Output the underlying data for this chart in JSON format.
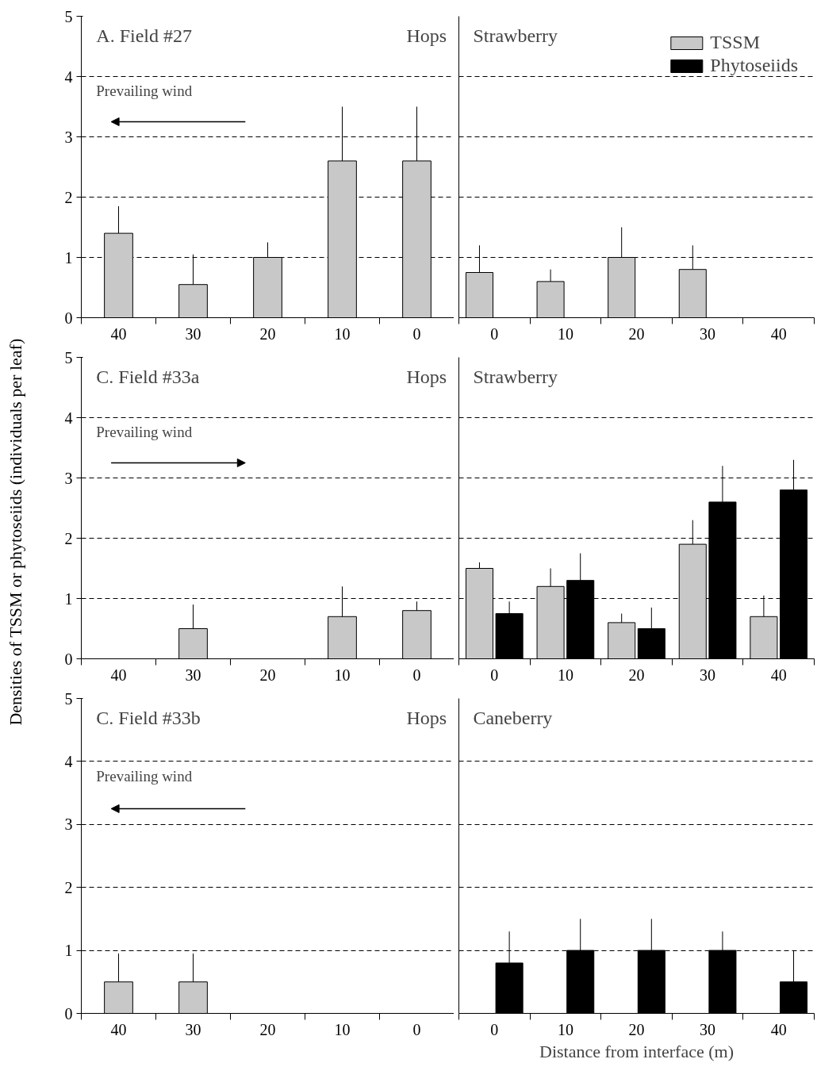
{
  "chart_data": [
    {
      "type": "bar",
      "title": "A. Field #27",
      "categories": [
        "40",
        "30",
        "20",
        "10",
        "0"
      ],
      "ylim": [
        0,
        5
      ],
      "yticks": [
        0,
        1,
        2,
        3,
        4,
        5
      ],
      "grid": "y",
      "annotations": [
        "Hops",
        "Prevailing wind"
      ],
      "series": [
        {
          "color": "#c8c8c8",
          "values": [
            1.4,
            0.55,
            1.0,
            2.6,
            2.6
          ],
          "errors": [
            [
              1.4,
              1.85
            ],
            [
              0.55,
              1.05
            ],
            [
              1.0,
              1.25
            ],
            [
              2.6,
              3.5
            ],
            [
              2.6,
              3.5
            ]
          ]
        }
      ]
    },
    {
      "type": "bar",
      "title": "Strawberry",
      "categories": [
        "0",
        "10",
        "20",
        "30",
        "40"
      ],
      "ylim": [
        0,
        5
      ],
      "yticks": [
        0,
        1,
        2,
        3,
        4,
        5
      ],
      "grid": "y",
      "tick_labels": "x",
      "legend": "top right",
      "series": [
        {
          "name": "TSSM",
          "color": "#c8c8c8",
          "values": [
            0.75,
            0.6,
            1.0,
            0.8,
            null
          ],
          "errors": [
            [
              0.75,
              1.2
            ],
            [
              0.6,
              0.8
            ],
            [
              1.0,
              1.5
            ],
            [
              0.8,
              1.2
            ],
            null
          ]
        },
        {
          "name": "Phytoseiids",
          "color": "#000000",
          "values": [
            null,
            null,
            null,
            null,
            null
          ]
        }
      ]
    },
    {
      "type": "bar",
      "title": "C. Field #33a",
      "categories": [
        "40",
        "30",
        "20",
        "10",
        "0"
      ],
      "ylim": [
        0,
        5
      ],
      "yticks": [
        0,
        1,
        2,
        3,
        4,
        5
      ],
      "grid": "y",
      "ylabel": "Densities of TSSM or phytoseiids (individuals per leaf)",
      "annotations": [
        "Hops",
        "Prevailing wind"
      ],
      "series": [
        {
          "color": "#c8c8c8",
          "values": [
            null,
            0.5,
            null,
            0.7,
            0.8
          ],
          "errors": [
            null,
            [
              0.5,
              0.9
            ],
            null,
            [
              0.7,
              1.2
            ],
            [
              0.8,
              0.95
            ]
          ]
        }
      ]
    },
    {
      "type": "bar",
      "title": "Strawberry",
      "categories": [
        "0",
        "10",
        "20",
        "30",
        "40"
      ],
      "ylim": [
        0,
        5
      ],
      "yticks": [
        0,
        1,
        2,
        3,
        4,
        5
      ],
      "grid": "y",
      "tick_labels": "x",
      "series": [
        {
          "color": "#c8c8c8",
          "values": [
            1.5,
            1.2,
            0.6,
            1.9,
            0.7
          ],
          "errors": [
            [
              1.5,
              1.6
            ],
            [
              1.2,
              1.5
            ],
            [
              0.6,
              0.75
            ],
            [
              1.9,
              2.3
            ],
            [
              0.7,
              1.05
            ]
          ]
        },
        {
          "color": "#000000",
          "values": [
            0.75,
            1.3,
            0.5,
            2.6,
            2.8
          ],
          "errors": [
            [
              0.75,
              0.95
            ],
            [
              1.3,
              1.75
            ],
            [
              0.5,
              0.85
            ],
            [
              2.6,
              3.2
            ],
            [
              2.8,
              3.3
            ]
          ]
        }
      ]
    },
    {
      "type": "bar",
      "title": "C. Field #33b",
      "categories": [
        "40",
        "30",
        "20",
        "10",
        "0"
      ],
      "ylim": [
        0,
        5
      ],
      "yticks": [
        0,
        1,
        2,
        3,
        4,
        5
      ],
      "grid": "y",
      "annotations": [
        "Hops",
        "Prevailing wind"
      ],
      "series": [
        {
          "color": "#c8c8c8",
          "values": [
            0.5,
            0.5,
            null,
            null,
            null
          ],
          "errors": [
            [
              0.5,
              0.95
            ],
            [
              0.5,
              0.95
            ],
            null,
            null,
            null
          ]
        }
      ]
    },
    {
      "type": "bar",
      "title": "Caneberry",
      "categories": [
        "0",
        "10",
        "20",
        "30",
        "40"
      ],
      "ylim": [
        0,
        5
      ],
      "yticks": [
        0,
        1,
        2,
        3,
        4,
        5
      ],
      "grid": "y",
      "tick_labels": "x",
      "xlabel": "Distance from interface (m)",
      "series": [
        {
          "color": "#c8c8c8",
          "values": [
            null,
            null,
            null,
            null,
            null
          ]
        },
        {
          "color": "#000000",
          "values": [
            0.8,
            1.0,
            1.0,
            1.0,
            0.5
          ],
          "errors": [
            [
              0.8,
              1.3
            ],
            [
              1.0,
              1.5
            ],
            [
              1.0,
              1.5
            ],
            [
              1.0,
              1.3
            ],
            [
              0.5,
              1.0
            ]
          ]
        }
      ]
    }
  ]
}
